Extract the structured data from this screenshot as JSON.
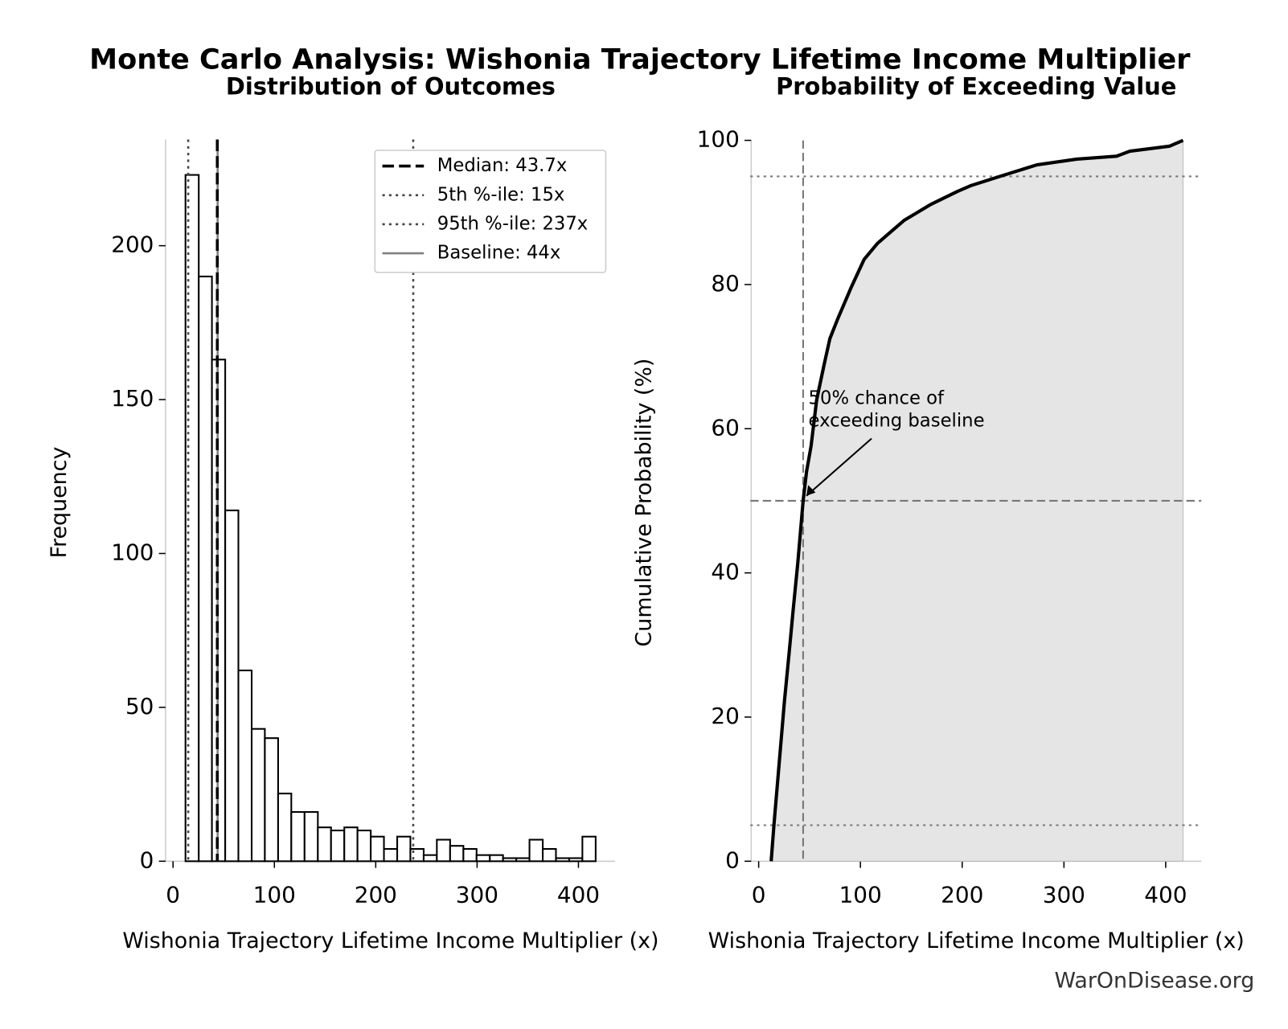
{
  "title": "Monte Carlo Analysis: Wishonia Trajectory Lifetime Income Multiplier",
  "footer": "WarOnDisease.org",
  "chart_data": [
    {
      "type": "histogram",
      "title": "Distribution of Outcomes",
      "xlabel": "Wishonia Trajectory Lifetime Income Multiplier (x)",
      "ylabel": "Frequency",
      "bins": [
        12.3,
        25.4,
        38.4,
        51.5,
        64.5,
        77.6,
        90.6,
        103.7,
        116.7,
        129.8,
        142.9,
        155.9,
        169.0,
        182.0,
        195.1,
        208.1,
        221.2,
        234.2,
        247.3,
        260.3,
        273.4,
        286.5,
        299.5,
        312.6,
        325.6,
        338.7,
        351.7,
        364.8,
        377.8,
        390.9,
        403.9,
        417.0
      ],
      "values": [
        223,
        190,
        163,
        114,
        62,
        43,
        40,
        22,
        16,
        16,
        11,
        10,
        11,
        10,
        8,
        4,
        8,
        4,
        2,
        7,
        5,
        4,
        2,
        2,
        1,
        1,
        7,
        4,
        1,
        1,
        8
      ],
      "color": "#ffffff",
      "edgecolor": "#000000",
      "xlim": [
        -9.8,
        436
      ],
      "ylim": [
        0,
        234.5
      ],
      "xticks": [
        0,
        100,
        200,
        300,
        400
      ],
      "yticks": [
        0,
        50,
        100,
        150,
        200
      ],
      "reference_lines": [
        {
          "name": "Median: 43.7x",
          "value": 43.7,
          "style": "dashed",
          "color": "#000000"
        },
        {
          "name": "5th %-ile: 15x",
          "value": 15,
          "style": "dotted",
          "color": "#444444"
        },
        {
          "name": "95th %-ile: 237x",
          "value": 237,
          "style": "dotted",
          "color": "#444444"
        },
        {
          "name": "Baseline: 44x",
          "value": 44,
          "style": "solid",
          "color": "#808080"
        }
      ],
      "legend": "upper right"
    },
    {
      "type": "line",
      "title": "Probability of Exceeding Value",
      "xlabel": "Wishonia Trajectory Lifetime Income Multiplier (x)",
      "ylabel": "Cumulative Probability (%)",
      "x": [
        12.3,
        15,
        18,
        21,
        25.4,
        30,
        34,
        38.4,
        43.7,
        47,
        51.5,
        57,
        64.5,
        70,
        77.6,
        90.6,
        103.7,
        116.7,
        129.8,
        142.9,
        169,
        195.1,
        208.1,
        237,
        273.4,
        312.6,
        351.7,
        364.8,
        403.9,
        417
      ],
      "values": [
        0,
        5,
        10,
        15,
        22.3,
        29,
        35,
        41.3,
        50,
        54,
        57.6,
        64,
        69,
        72.5,
        75.2,
        79.5,
        83.5,
        85.7,
        87.3,
        88.9,
        91.1,
        92.9,
        93.7,
        95,
        96.6,
        97.4,
        97.8,
        98.5,
        99.2,
        100
      ],
      "color": "#000000",
      "fill_color": "#e5e5e5",
      "xlim": [
        -8.2,
        435
      ],
      "ylim": [
        0,
        100
      ],
      "xticks": [
        0,
        100,
        200,
        300,
        400
      ],
      "yticks": [
        0,
        20,
        40,
        60,
        80,
        100
      ],
      "hlines": [
        5,
        50,
        95
      ],
      "vline": 43.7,
      "annotation": [
        "50% chance of",
        "exceeding baseline"
      ],
      "annotation_point": [
        43.7,
        50
      ]
    }
  ]
}
